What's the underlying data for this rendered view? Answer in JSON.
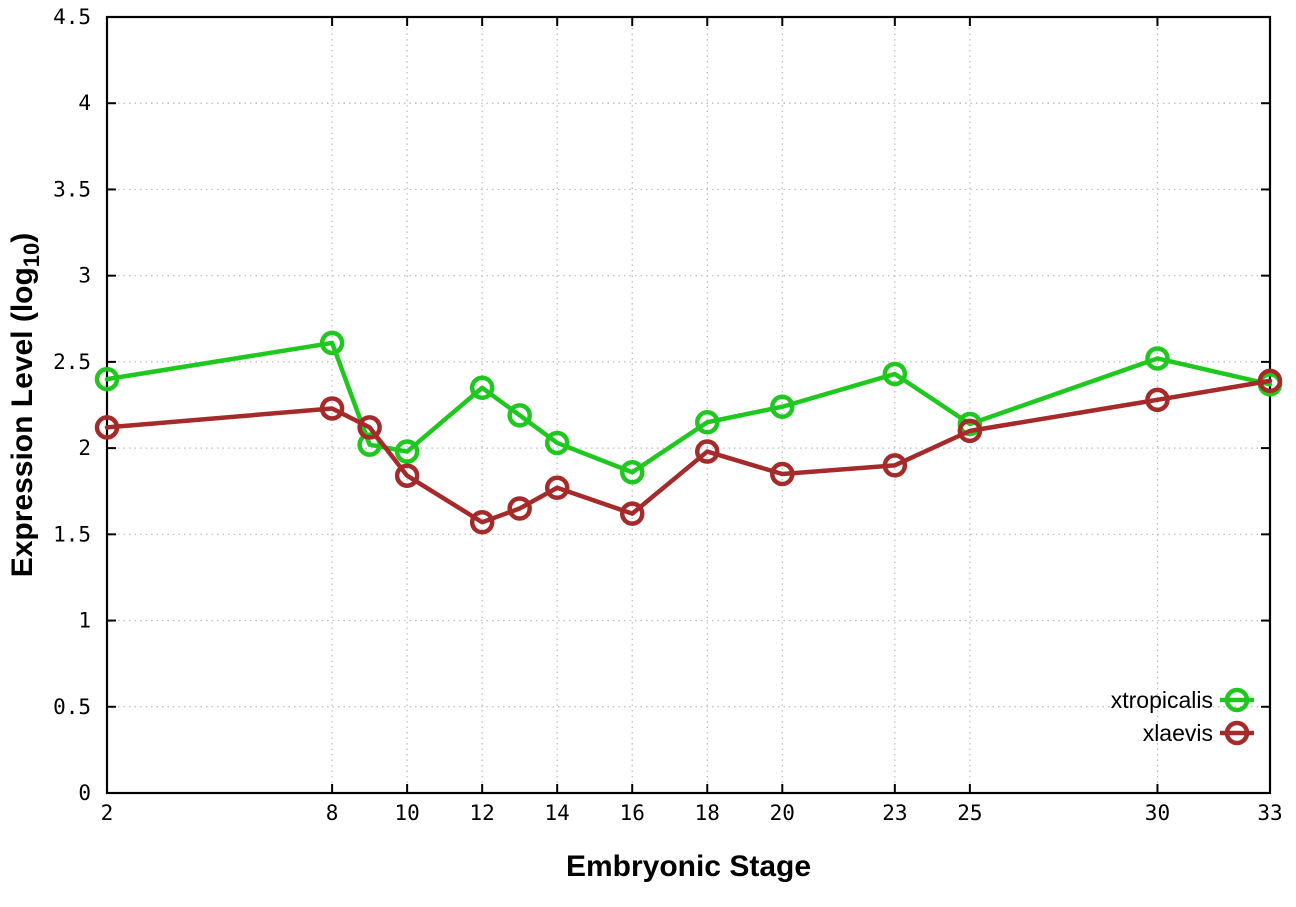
{
  "chart_data": {
    "type": "line",
    "title": "",
    "xlabel": "Embryonic Stage",
    "ylabel": "Expression Level (log10)",
    "ylabel_parts": {
      "prefix": "Expression Level (log",
      "subscript": "10",
      "suffix": ")"
    },
    "x": [
      2,
      8,
      9,
      10,
      12,
      13,
      14,
      16,
      18,
      20,
      23,
      25,
      30,
      33
    ],
    "series": [
      {
        "name": "xtropicalis",
        "color": "#1ec81e",
        "marker": "open-circle",
        "values": [
          2.4,
          2.61,
          2.02,
          1.98,
          2.35,
          2.19,
          2.03,
          1.86,
          2.15,
          2.24,
          2.43,
          2.14,
          2.52,
          2.37
        ]
      },
      {
        "name": "xlaevis",
        "color": "#a52a2a",
        "marker": "open-circle",
        "values": [
          2.12,
          2.23,
          2.12,
          1.84,
          1.57,
          1.65,
          1.77,
          1.62,
          1.98,
          1.85,
          1.9,
          2.1,
          2.28,
          2.39
        ]
      }
    ],
    "xlim": [
      2,
      33
    ],
    "ylim": [
      0,
      4.5
    ],
    "xticks": [
      2,
      8,
      10,
      12,
      14,
      16,
      18,
      20,
      23,
      25,
      30,
      33
    ],
    "xtick_labels": [
      "2",
      "8",
      "10",
      "12",
      "14",
      "16",
      "18",
      "20",
      "23",
      "25",
      "30",
      "33"
    ],
    "yticks": [
      0,
      0.5,
      1,
      1.5,
      2,
      2.5,
      3,
      3.5,
      4,
      4.5
    ],
    "ytick_labels": [
      "0",
      "0.5",
      "1",
      "1.5",
      "2",
      "2.5",
      "3",
      "3.5",
      "4",
      "4.5"
    ],
    "grid": true,
    "grid_style": "dotted",
    "legend_position": "bottom-right",
    "colors": {
      "border": "#000000",
      "grid": "#bbbbbb",
      "background": "#ffffff"
    }
  }
}
